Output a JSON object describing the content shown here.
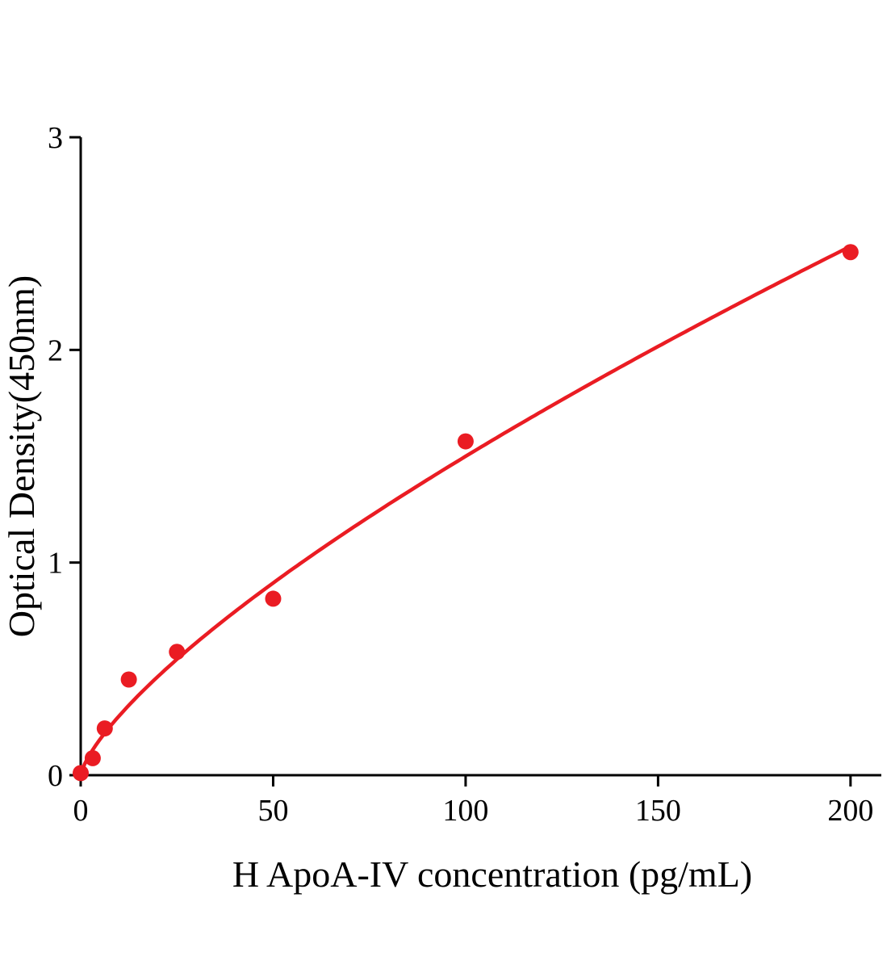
{
  "figure": {
    "background": "#ffffff"
  },
  "chart_data": {
    "type": "scatter",
    "title": "",
    "xlabel": "H ApoA-IV concentration (pg/mL)",
    "ylabel": "Optical Density(450nm)",
    "xlim": [
      0,
      208
    ],
    "ylim": [
      0,
      3
    ],
    "xticks": [
      0,
      50,
      100,
      150,
      200
    ],
    "yticks": [
      0,
      1,
      2,
      3
    ],
    "grid": false,
    "legend": "none",
    "points": {
      "x": [
        0,
        3.125,
        6.25,
        12.5,
        25,
        50,
        100,
        200
      ],
      "y": [
        0.01,
        0.08,
        0.22,
        0.45,
        0.58,
        0.83,
        1.57,
        2.46
      ]
    },
    "fit": {
      "type": "power",
      "a": 0.052,
      "b": 0.73
    },
    "point_color": "#ea1c23",
    "curve_color": "#ea1c23",
    "axis_color": "#000000"
  }
}
